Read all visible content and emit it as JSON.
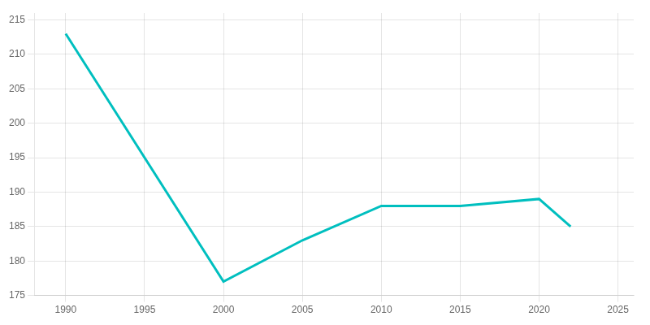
{
  "chart_data": {
    "type": "line",
    "x": [
      1990,
      2000,
      2005,
      2010,
      2015,
      2020,
      2022
    ],
    "values": [
      213,
      177,
      183,
      188,
      188,
      189,
      185
    ],
    "color": "#00BFBF",
    "xlim": [
      1988,
      2026
    ],
    "ylim": [
      175,
      216
    ],
    "xticks": [
      1990,
      1995,
      2000,
      2005,
      2010,
      2015,
      2020,
      2025
    ],
    "yticks": [
      175,
      180,
      185,
      190,
      195,
      200,
      205,
      210,
      215
    ],
    "grid": true
  }
}
